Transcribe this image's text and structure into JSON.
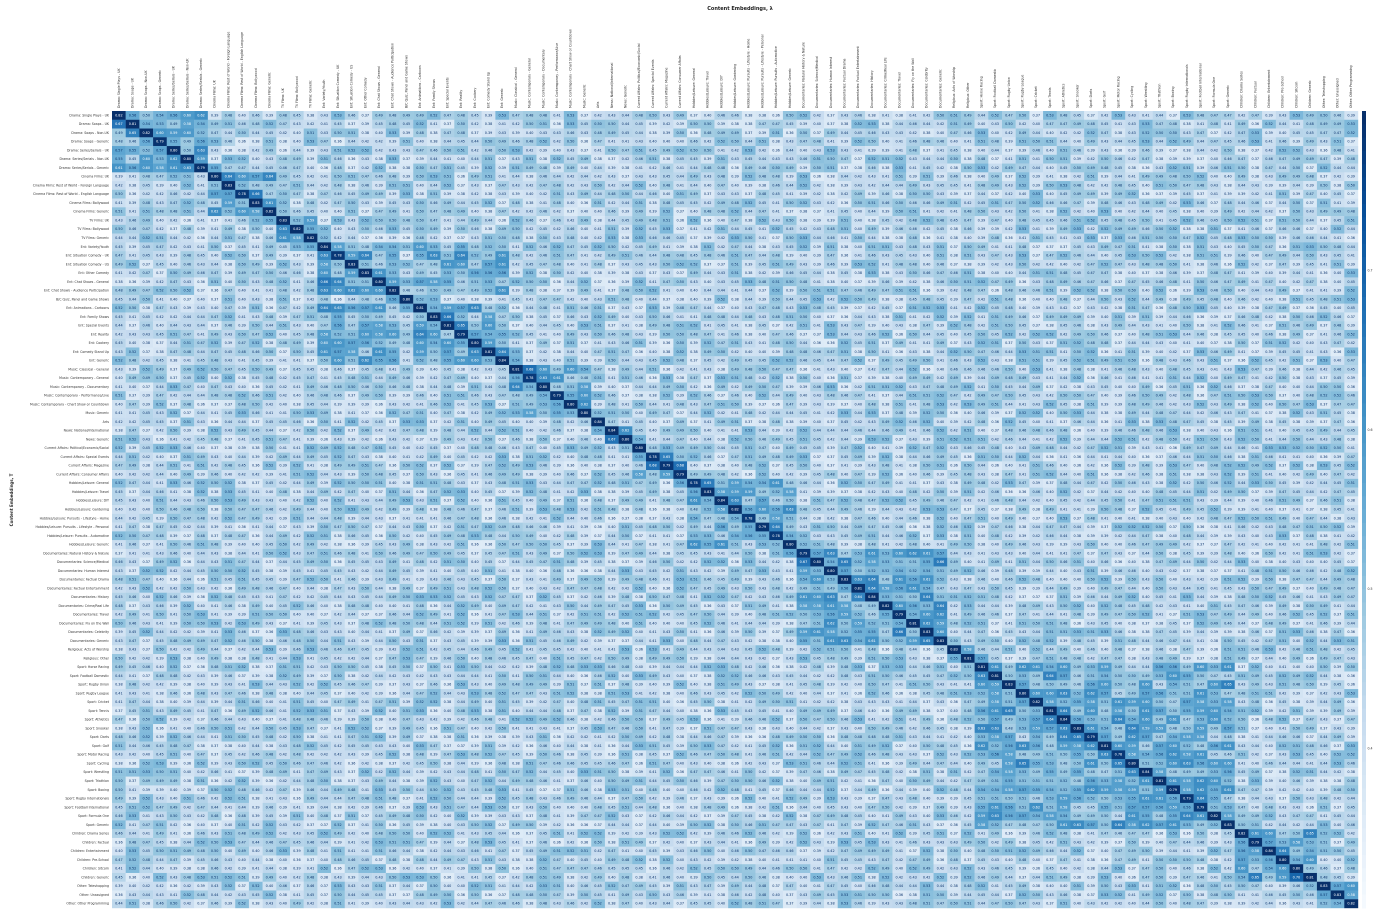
{
  "chart_data": {
    "type": "heatmap",
    "title": "Content Embeddings, λ",
    "xlabel": "",
    "ylabel": "Content Embeddings, T",
    "colorscale": [
      "#f7fbff",
      "#deebf7",
      "#c6dbef",
      "#9ecae1",
      "#6baed6",
      "#4292c6",
      "#2171b5",
      "#08519c",
      "#08306b"
    ],
    "value_range": [
      0.3,
      0.8
    ],
    "categories": [
      "Drama: Single Plays - UK",
      "Drama: Soaps - UK",
      "Drama: Soaps - Non-UK",
      "Drama: Soaps - Generic",
      "Drama: Series/Serials - UK",
      "Drama: Series/Serials - Non-UK",
      "Drama: Series/Serials - Generic",
      "Cinema Films: UK",
      "Cinema Films: Rest of World - Foreign Language",
      "Cinema Films: Rest of World - English Language",
      "Cinema Films: Bollywood",
      "Cinema Films: Generic",
      "TV Films: UK",
      "TV Films: Bollywood",
      "TV Films: Generic",
      "Ent: Variety/Youth",
      "Ent: Situation Comedy - UK",
      "Ent: Situation Comedy - US",
      "Ent: Other Comedy",
      "Ent: Chat Shows - General",
      "Ent: Chat Shows - Audience Participation",
      "B/C Quiz, Panel and Game Shows",
      "Ent: Animations - Cartoons",
      "Ent: Family Shows",
      "Ent: Special Events",
      "Ent: Reality",
      "Ent: Cookery",
      "Ent: Comedy Stand Up",
      "Ent: Generic",
      "Music: Classical - General",
      "Music: Contemporary - General",
      "Music: Contemporary - Documentary",
      "Music: Contemporary - Performance/Live",
      "Music: Contemporary - Chart Show or Countdown",
      "Music: Generic",
      "Arts",
      "News: National/International",
      "News: Generic",
      "Current Affairs: Political/Economic/Social",
      "Current Affairs: Special Events",
      "Current Affairs: Magazine",
      "Current Affairs: Consumer Affairs",
      "Hobbies/Leisure: General",
      "Hobbies/Leisure: Travel",
      "Hobbies/Leisure: DIY",
      "Hobbies/Leisure: Gardening",
      "Hobbies/Leisure: Pursuits - Lifestyle - Home",
      "Hobbies/Leisure: Pursuits - Lifestyle - Personal",
      "Hobbies/Leisure: Pursuits - Automotive",
      "Hobbies/Leisure: Generic",
      "Documentaries: Natural History & Nature",
      "Documentaries: Science/Medical",
      "Documentaries: Human Interest",
      "Documentaries: Factual Drama",
      "Documentaries: Factual Entertainment",
      "Documentaries: History",
      "Documentaries: Crime/Real Life",
      "Documentaries: Travel",
      "Documentaries: Fly on the Wall",
      "Documentaries: Celebrity",
      "Documentaries: Generic",
      "Religious: Acts of Worship",
      "Religious: Other",
      "Sport: Horse Racing",
      "Sport: Football Domestic",
      "Sport: Rugby Union",
      "Sport: Rugby League",
      "Sport: Cricket",
      "Sport: Tennis",
      "Sport: Athletics",
      "Sport: Snooker",
      "Sport: Darts",
      "Sport: Golf",
      "Sport: Motor Racing",
      "Sport: Cycling",
      "Sport: Wrestling",
      "Sport: Triathlon",
      "Sport: Boxing",
      "Sport: Rugby Internationals",
      "Sport: Football International",
      "Sport: Formula One",
      "Sport: Generic",
      "Children: Drama Series",
      "Children: Factual",
      "Children: Entertainment",
      "Children: Pre-School",
      "Children: Sitcom",
      "Children: Generic",
      "Other: Teleshopping",
      "Other: Unassigned",
      "Other: Other Programming"
    ],
    "row_labels_same_as_columns": true,
    "values_note_hidden": "",
    "seed": 17,
    "colorbar_ticks": [
      "0.4",
      "0.5",
      "0.6",
      "0.7"
    ]
  }
}
